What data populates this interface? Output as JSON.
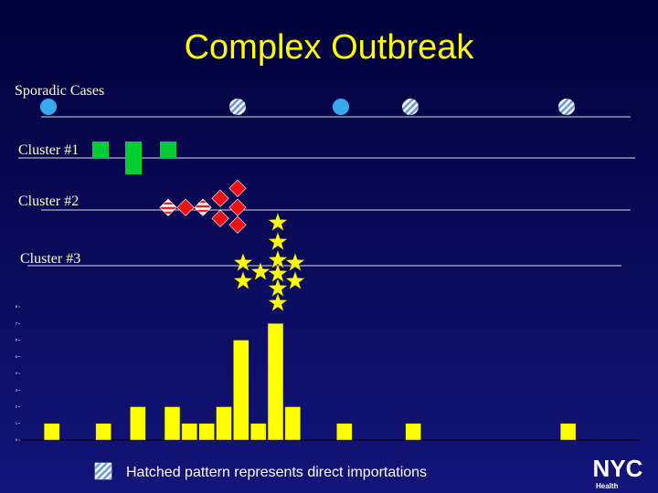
{
  "header": {
    "title": "Complex Outbreak"
  },
  "rows": [
    "Sporadic Cases",
    "Cluster #1",
    "Cluster #2",
    "Cluster #3"
  ],
  "footer": {
    "note": "Hatched pattern represents direct importations",
    "logo": "NYC",
    "logo_sub": "Health"
  },
  "chart_data": {
    "type": "bar",
    "color": "#ffff00",
    "x": [
      2,
      5,
      7,
      9,
      10,
      11,
      12,
      13,
      14,
      15,
      16,
      19,
      23,
      32
    ],
    "values": [
      1,
      1,
      2,
      2,
      1,
      1,
      2,
      6,
      1,
      7,
      2,
      1,
      1,
      1
    ],
    "xlim": [
      0,
      36
    ],
    "ylim": [
      0,
      8
    ],
    "yticks": [
      0,
      1,
      2,
      3,
      4,
      5,
      6,
      7,
      8
    ]
  }
}
